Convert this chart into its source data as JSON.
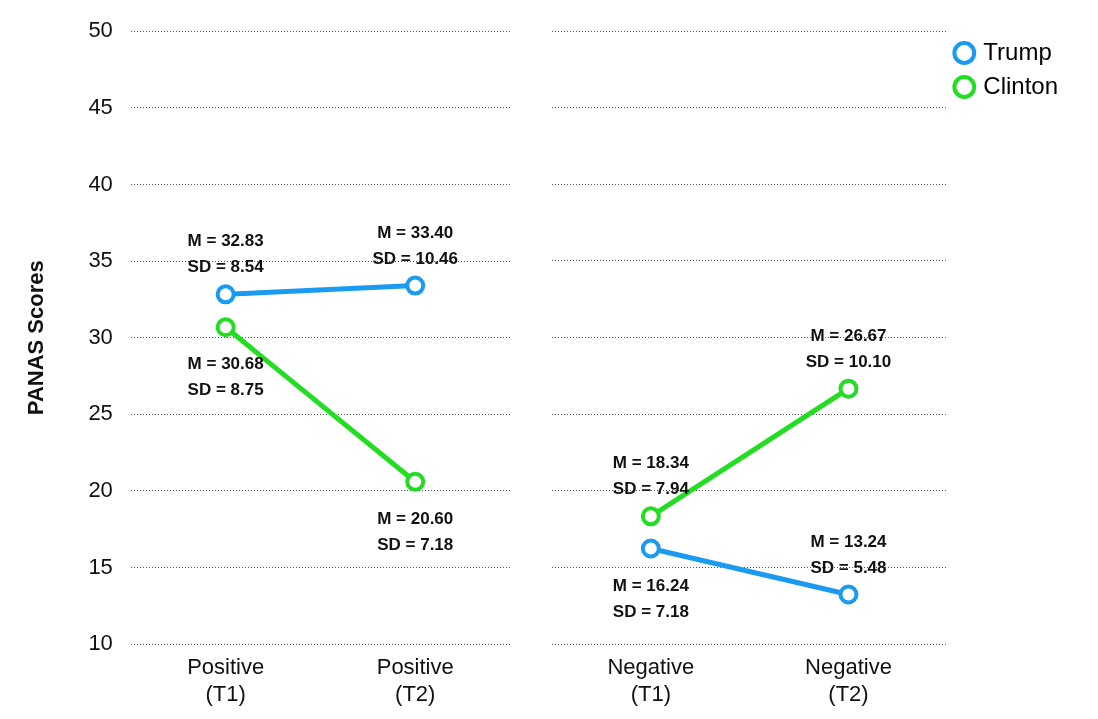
{
  "chart_data": [
    {
      "type": "line",
      "ylabel": "PANAS Scores",
      "categories": [
        "Positive\n(T1)",
        "Positive\n(T2)"
      ],
      "series": [
        {
          "color": "#1a9af0",
          "values": [
            32.83,
            33.4
          ]
        },
        {
          "color": "#22dd22",
          "values": [
            30.68,
            20.6
          ]
        }
      ],
      "ylim": [
        10,
        50
      ],
      "yticks": [
        10,
        15,
        20,
        25,
        30,
        35,
        40,
        45,
        50
      ],
      "grid": "y",
      "marker": "circle",
      "line_style": "solid",
      "legend": false,
      "annotations": [
        {
          "text": "M = 32.83\nSD = 8.54",
          "x": "Positive\n(T1)",
          "y": 32.83
        },
        {
          "text": "M = 30.68\nSD = 8.75",
          "x": "Positive\n(T1)",
          "y": 30.68
        },
        {
          "text": "M = 33.40\nSD = 10.46",
          "x": "Positive\n(T2)",
          "y": 33.4
        },
        {
          "text": "M = 20.60\nSD = 7.18",
          "x": "Positive\n(T2)",
          "y": 20.6
        }
      ]
    },
    {
      "type": "line",
      "categories": [
        "Negative\n(T1)",
        "Negative\n(T2)"
      ],
      "series": [
        {
          "name": "Trump",
          "color": "#1a9af0",
          "values": [
            16.24,
            13.24
          ]
        },
        {
          "name": "Clinton",
          "color": "#22dd22",
          "values": [
            18.34,
            26.67
          ]
        }
      ],
      "ylim": [
        10,
        50
      ],
      "yticks": [
        10,
        15,
        20,
        25,
        30,
        35,
        40,
        45,
        50
      ],
      "grid": "y",
      "marker": "circle",
      "line_style": "solid",
      "legend": "top right",
      "tick_labels": "x",
      "annotations": [
        {
          "text": "M = 18.34\nSD = 7.94",
          "x": "Negative\n(T1)",
          "y": 18.34
        },
        {
          "text": "M = 16.24\nSD = 7.18",
          "x": "Negative\n(T1)",
          "y": 16.24
        },
        {
          "text": "M = 26.67\nSD = 10.10",
          "x": "Negative\n(T2)",
          "y": 26.67
        },
        {
          "text": "M = 13.24\nSD = 5.48",
          "x": "Negative\n(T2)",
          "y": 13.24
        }
      ]
    }
  ]
}
